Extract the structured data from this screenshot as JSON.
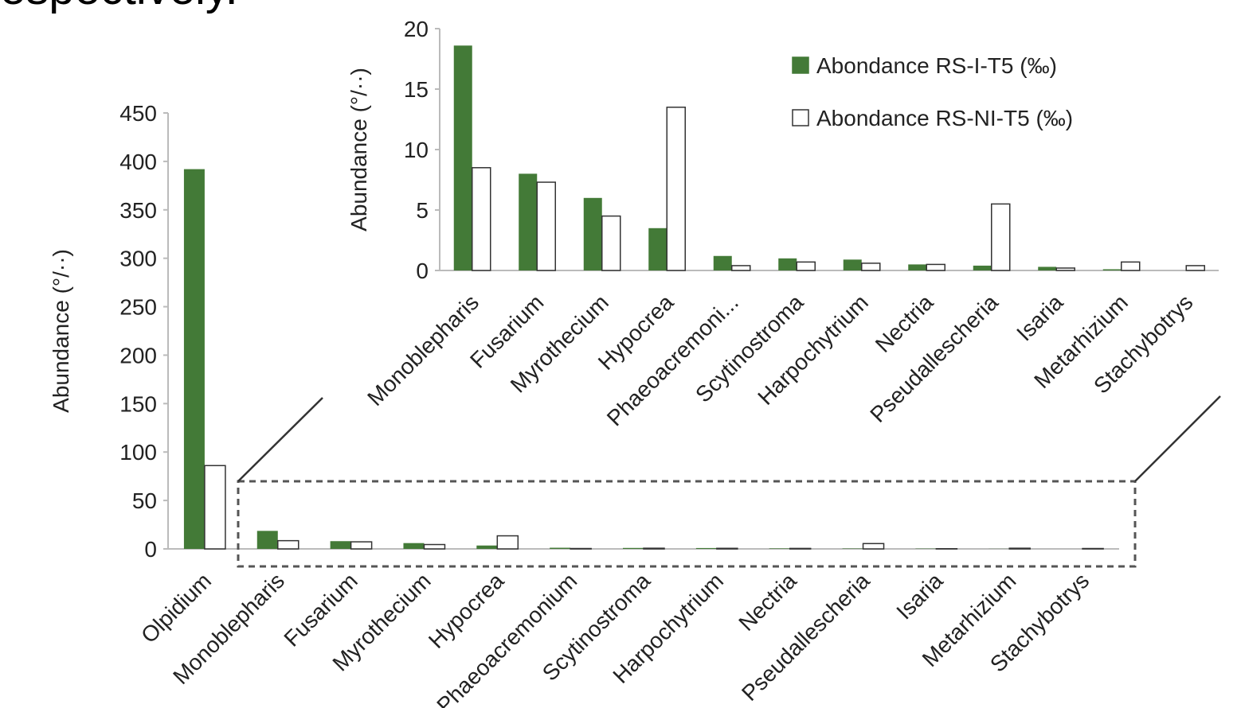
{
  "page_heading": "espectively.",
  "colors": {
    "series1": "#437a37",
    "series2": "#ffffff",
    "series2_stroke": "#333333",
    "axis": "#bbbbbb",
    "connector": "#333333",
    "dash_box": "#555555"
  },
  "chart_data": [
    {
      "type": "bar",
      "name": "full",
      "ylabel": "Abundance (°/··)",
      "ylim": [
        0,
        450
      ],
      "yticks": [
        "0",
        "50",
        "100",
        "150",
        "200",
        "250",
        "300",
        "350",
        "400",
        "450"
      ],
      "categories": [
        "Olpidium",
        "Monoblepharis",
        "Fusarium",
        "Myrothecium",
        "Hypocrea",
        "Phaeoacremonium",
        "Scytinostroma",
        "Harpochytrium",
        "Nectria",
        "Pseudallescheria",
        "Isaria",
        "Metarhizium",
        "Stachybotrys"
      ],
      "series": [
        {
          "name": "Abondance RS-I-T5 (‰)",
          "values": [
            392,
            18.6,
            8,
            6,
            3.5,
            1.2,
            1,
            0.9,
            0.5,
            0.4,
            0.3,
            0.1,
            0
          ]
        },
        {
          "name": "Abondance RS-NI-T5 (‰)",
          "values": [
            86,
            8.5,
            7.3,
            4.5,
            13.5,
            0.4,
            0.7,
            0.6,
            0.5,
            5.5,
            0.2,
            0.7,
            0.4
          ]
        }
      ]
    },
    {
      "type": "bar",
      "name": "zoom-inset",
      "ylabel": "Abundance (°/··)",
      "ylim": [
        0,
        20
      ],
      "yticks": [
        "0",
        "5",
        "10",
        "15",
        "20"
      ],
      "categories": [
        "Monoblepharis",
        "Fusarium",
        "Myrothecium",
        "Hypocrea",
        "Phaeoacremoni...",
        "Scytinostroma",
        "Harpochytrium",
        "Nectria",
        "Pseudallescheria",
        "Isaria",
        "Metarhizium",
        "Stachybotrys"
      ],
      "legend_position": "top-right",
      "series": [
        {
          "name": "Abondance RS-I-T5 (‰)",
          "values": [
            18.6,
            8,
            6,
            3.5,
            1.2,
            1,
            0.9,
            0.5,
            0.4,
            0.3,
            0.1,
            0
          ]
        },
        {
          "name": "Abondance RS-NI-T5 (‰)",
          "values": [
            8.5,
            7.3,
            4.5,
            13.5,
            0.4,
            0.7,
            0.6,
            0.5,
            5.5,
            0.2,
            0.7,
            0.4
          ]
        }
      ]
    }
  ]
}
